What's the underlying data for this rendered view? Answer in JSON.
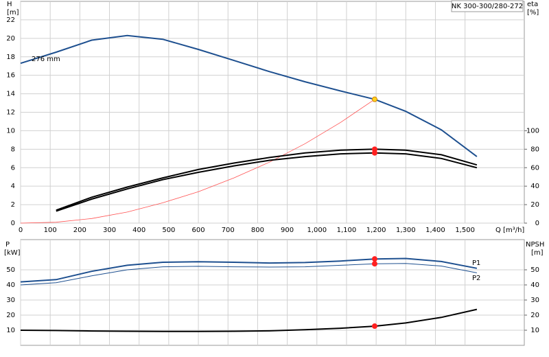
{
  "chart_data": [
    {
      "type": "line",
      "title": "NK 300-300/280-272",
      "x_label": "Q [m³/h]",
      "y_label": "H",
      "y_unit": "[m]",
      "y2_label": "eta",
      "y2_unit": "[%]",
      "x": [
        0,
        120,
        240,
        360,
        480,
        600,
        720,
        840,
        960,
        1080,
        1195,
        1300,
        1420,
        1540
      ],
      "xlim": [
        0,
        1700
      ],
      "xticks": [
        0,
        100,
        200,
        300,
        400,
        500,
        600,
        700,
        800,
        900,
        {
          "value": 1000,
          "label": "1,000"
        },
        {
          "value": 1100,
          "label": "1,100"
        },
        {
          "value": 1200,
          "label": "1,200"
        },
        {
          "value": 1300,
          "label": "1,300"
        },
        {
          "value": 1400,
          "label": "1,400"
        },
        {
          "value": 1500,
          "label": "1,500"
        }
      ],
      "ylim": [
        0,
        24
      ],
      "yticks": [
        0,
        2,
        4,
        6,
        8,
        10,
        12,
        14,
        16,
        18,
        20,
        22
      ],
      "y2lim": [
        0,
        240
      ],
      "y2ticks": [
        0,
        20,
        40,
        60,
        80,
        100
      ],
      "grid": true,
      "duty_x": 1195,
      "series": [
        {
          "name": "276 mm",
          "color": "#1d4f8f",
          "width": 2,
          "marker": "#ffd21f",
          "values": [
            17.3,
            18.5,
            19.8,
            20.3,
            19.9,
            18.8,
            17.6,
            16.4,
            15.3,
            14.3,
            13.4,
            12.1,
            10.1,
            7.2
          ]
        },
        {
          "color": "#ff5050",
          "width": 0.8,
          "values": [
            0,
            0.1,
            0.5,
            1.2,
            2.2,
            3.4,
            4.9,
            6.6,
            8.6,
            10.9,
            13.4,
            null,
            null,
            null
          ]
        },
        {
          "color": "#000000",
          "width": 2,
          "axis": "y2",
          "marker": "#ff2020",
          "values": [
            null,
            14,
            28,
            39,
            49,
            58,
            65,
            71,
            76,
            79,
            80,
            79,
            74,
            63
          ]
        },
        {
          "color": "#000000",
          "width": 2,
          "axis": "y2",
          "marker": "#ff2020",
          "values": [
            null,
            13,
            26,
            37,
            47,
            55,
            62,
            68,
            72,
            75,
            76,
            75,
            70,
            60
          ]
        }
      ]
    },
    {
      "type": "line",
      "y_label": "P",
      "y_unit": "[kW]",
      "y2_label": "NPSH",
      "y2_unit": "[m]",
      "x": [
        0,
        120,
        240,
        360,
        480,
        600,
        720,
        840,
        960,
        1080,
        1195,
        1300,
        1420,
        1540
      ],
      "xlim": [
        0,
        1700
      ],
      "xticks": [
        0,
        100,
        200,
        300,
        400,
        500,
        600,
        700,
        800,
        900,
        1000,
        1100,
        1200,
        1300,
        1400,
        1500
      ],
      "ylim": [
        0,
        70
      ],
      "yticks": [
        10,
        20,
        30,
        40,
        50
      ],
      "y2lim": [
        0,
        70
      ],
      "y2ticks": [
        10,
        20,
        30,
        40,
        50
      ],
      "grid": true,
      "duty_x": 1195,
      "series": [
        {
          "name": "P1",
          "color": "#1d4f8f",
          "width": 2,
          "marker": "#ff2020",
          "values": [
            42,
            43.5,
            49,
            53,
            55,
            55.3,
            55,
            54.5,
            54.8,
            55.8,
            57.2,
            57.5,
            55.5,
            51
          ]
        },
        {
          "name": "P2",
          "color": "#1d4f8f",
          "width": 1,
          "marker": "#ff2020",
          "values": [
            40,
            41.5,
            46,
            50,
            52,
            52.3,
            52,
            51.8,
            52,
            53,
            54,
            54.2,
            52.5,
            48
          ]
        },
        {
          "color": "#000000",
          "width": 2,
          "axis": "y2",
          "marker": "#ff2020",
          "values": [
            10,
            9.8,
            9.5,
            9.3,
            9.2,
            9.2,
            9.3,
            9.6,
            10.3,
            11.3,
            12.7,
            14.8,
            18.5,
            23.8
          ]
        }
      ]
    }
  ]
}
